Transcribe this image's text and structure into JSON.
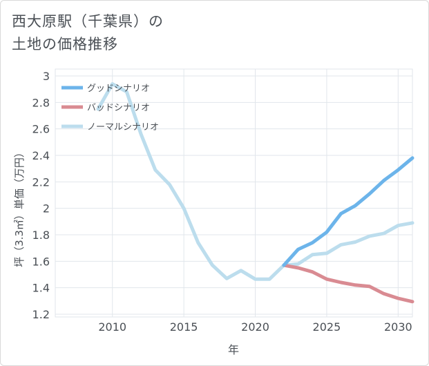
{
  "title": {
    "line1": "西大原駅（千葉県）の",
    "line2": "土地の価格推移"
  },
  "colors": {
    "good": "#6cb4ea",
    "bad": "#d98b92",
    "normal": "#bcdded",
    "grid": "#e1e6eb",
    "axis_text": "#4a4f55"
  },
  "chart_data": {
    "type": "line",
    "title": "西大原駅（千葉県）の 土地の価格推移",
    "xlabel": "年",
    "ylabel": "坪（3.3㎡）単価（万円）",
    "xlim": [
      2006,
      2031
    ],
    "ylim": [
      1.2,
      3.0
    ],
    "x_ticks": [
      2010,
      2015,
      2020,
      2025,
      2030
    ],
    "y_ticks": [
      1.2,
      1.4,
      1.6,
      1.8,
      2,
      2.2,
      2.4,
      2.6,
      2.8,
      3
    ],
    "y_tick_labels": [
      "1.2",
      "1.4",
      "1.6",
      "1.8",
      "2",
      "2.2",
      "2.4",
      "2.6",
      "2.8",
      "3"
    ],
    "grid": true,
    "legend_position": "top-left",
    "series": [
      {
        "name": "グッドシナリオ",
        "key": "good",
        "x": [
          2022,
          2023,
          2024,
          2025,
          2026,
          2027,
          2028,
          2029,
          2030,
          2031
        ],
        "values": [
          1.57,
          1.69,
          1.74,
          1.82,
          1.96,
          2.02,
          2.11,
          2.21,
          2.29,
          2.38
        ]
      },
      {
        "name": "バッドシナリオ",
        "key": "bad",
        "x": [
          2022,
          2023,
          2024,
          2025,
          2026,
          2027,
          2028,
          2029,
          2030,
          2031
        ],
        "values": [
          1.57,
          1.55,
          1.52,
          1.465,
          1.44,
          1.42,
          1.41,
          1.355,
          1.32,
          1.295
        ]
      },
      {
        "name": "ノーマルシナリオ",
        "key": "normal",
        "x": [
          2009,
          2010,
          2011,
          2012,
          2013,
          2014,
          2015,
          2016,
          2017,
          2018,
          2019,
          2020,
          2021,
          2022,
          2023,
          2024,
          2025,
          2026,
          2027,
          2028,
          2029,
          2030,
          2031
        ],
        "values": [
          2.75,
          2.94,
          2.88,
          2.56,
          2.29,
          2.18,
          2.0,
          1.74,
          1.57,
          1.47,
          1.53,
          1.465,
          1.465,
          1.57,
          1.58,
          1.65,
          1.66,
          1.725,
          1.745,
          1.79,
          1.81,
          1.87,
          1.89
        ]
      }
    ]
  }
}
